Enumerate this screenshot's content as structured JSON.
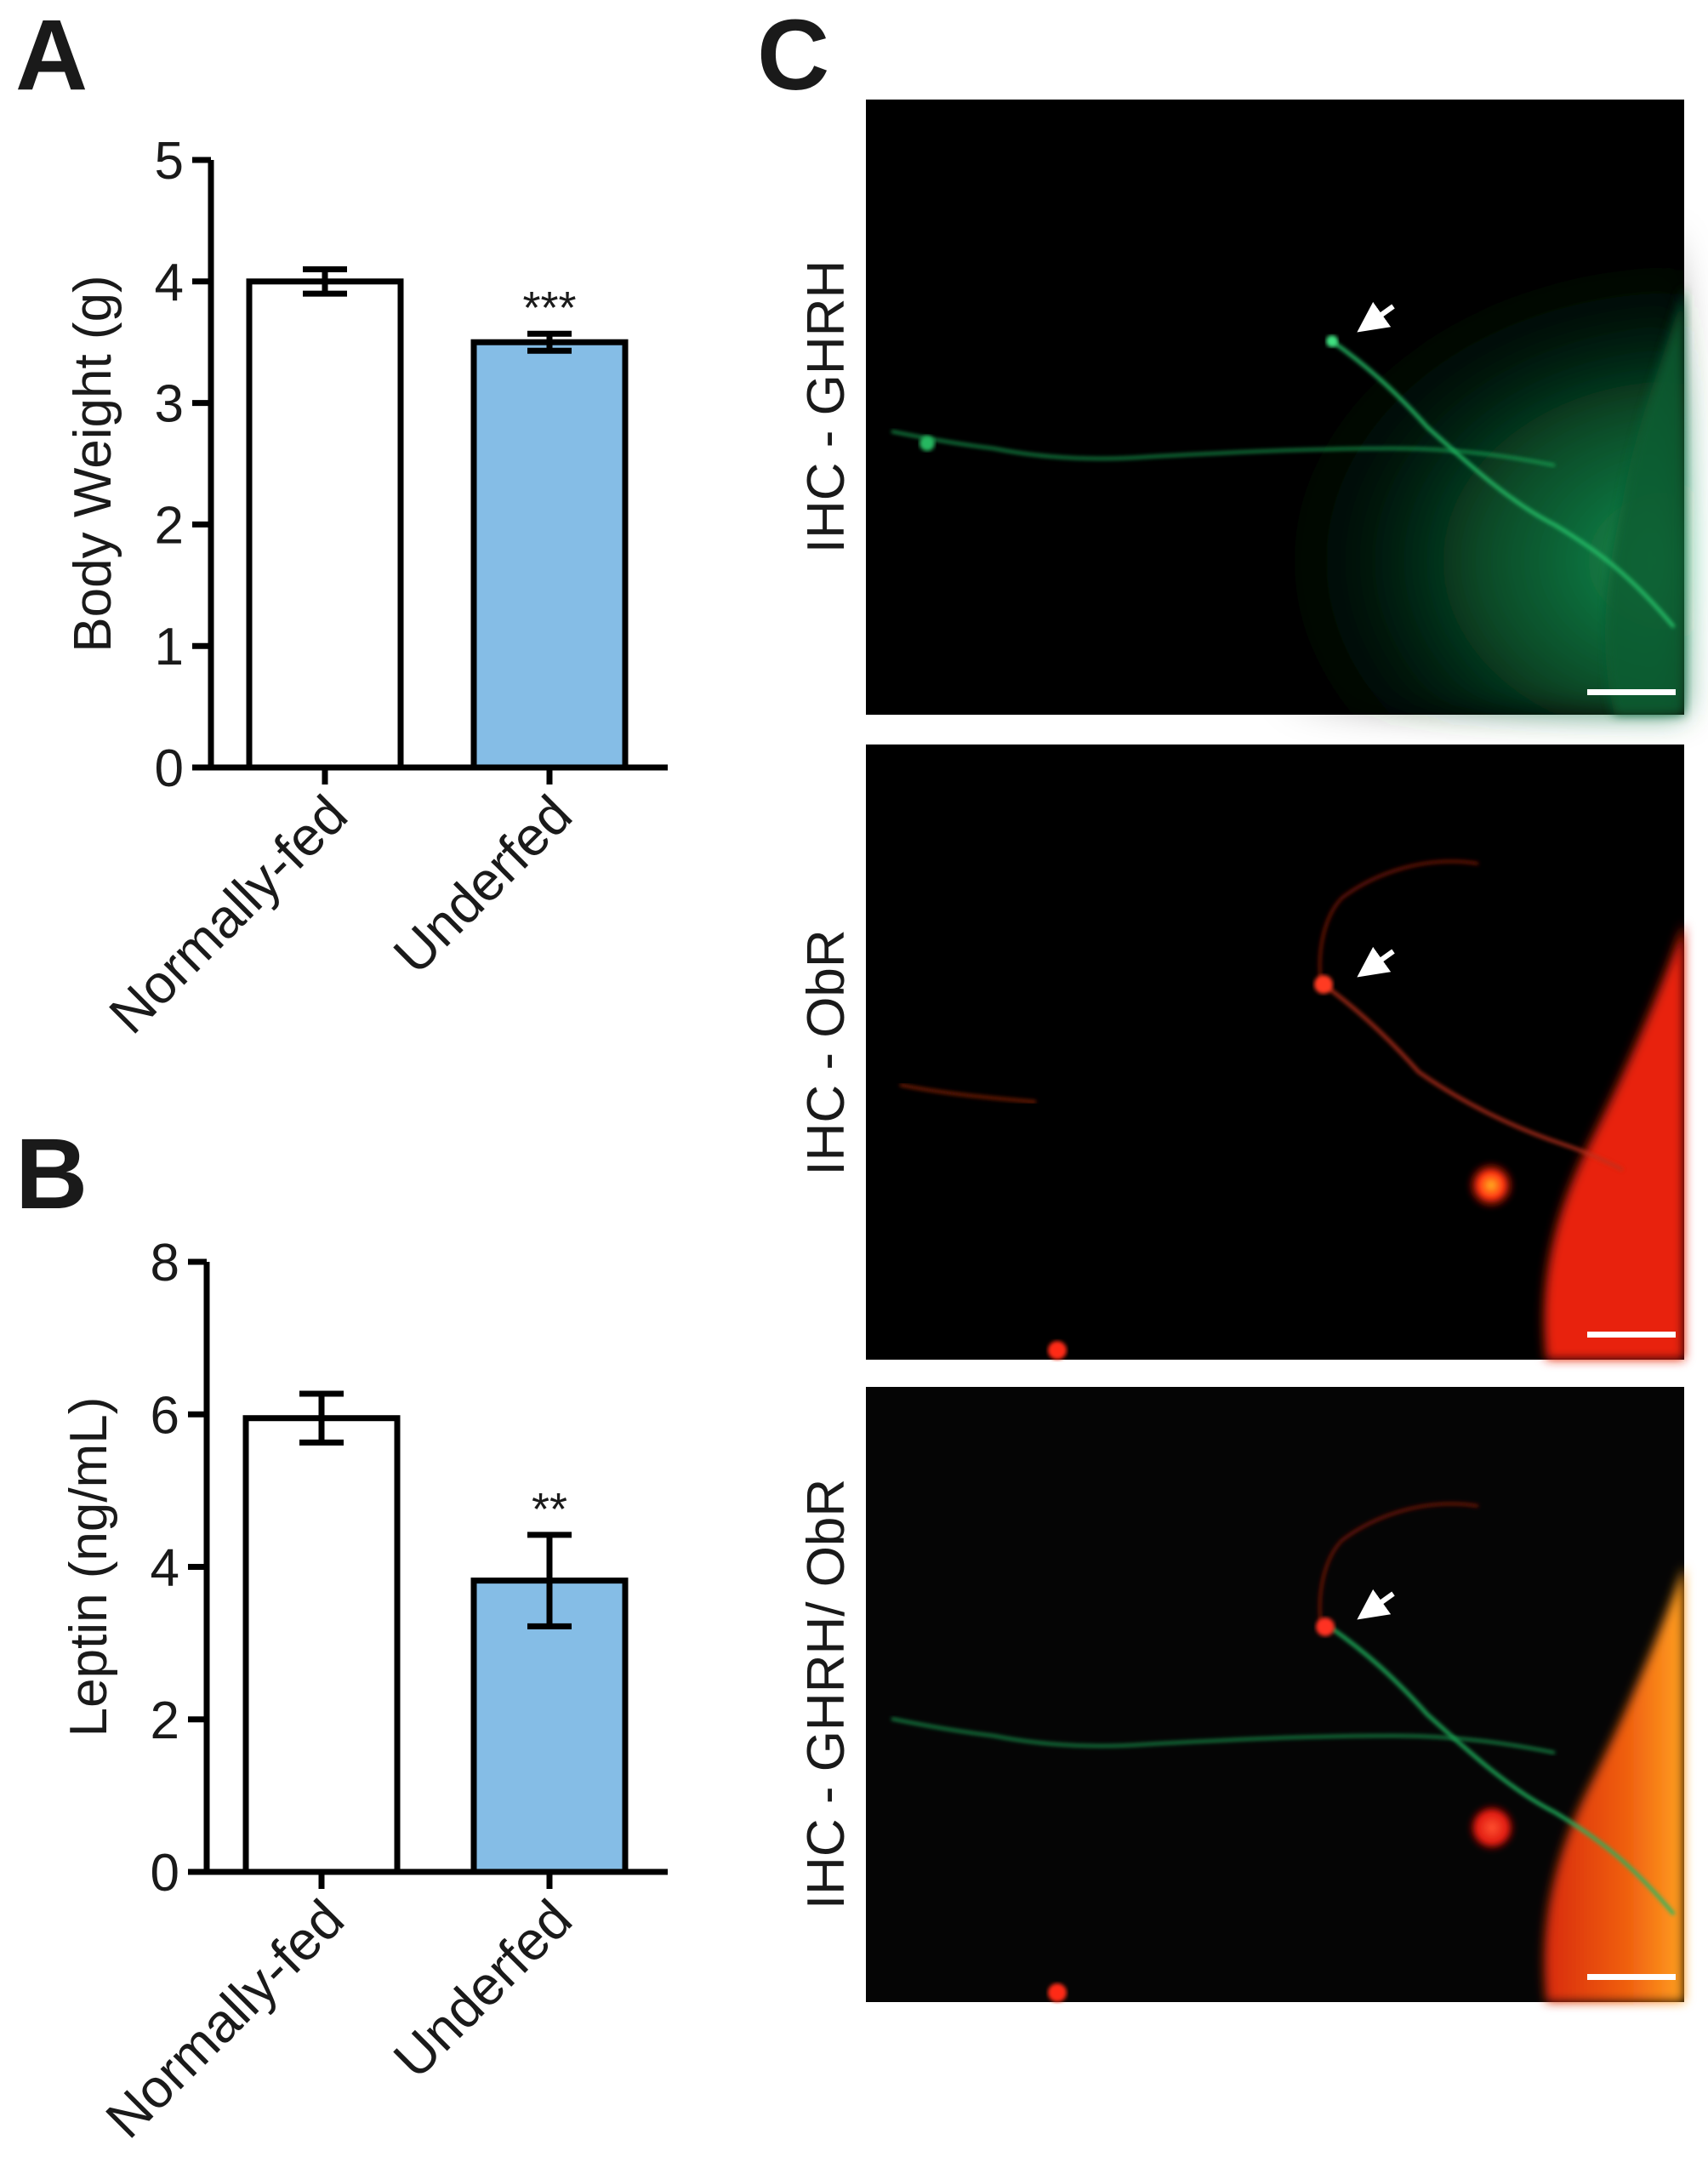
{
  "panels": {
    "A": "A",
    "B": "B",
    "C": "C"
  },
  "chart_data": [
    {
      "panel": "A",
      "type": "bar",
      "categories": [
        "Normally-fed",
        "Underfed"
      ],
      "values": [
        4.0,
        3.5
      ],
      "errors": [
        0.1,
        0.07
      ],
      "significance": [
        "",
        "***"
      ],
      "ylabel": "Body Weight (g)",
      "xlabel": "",
      "ylim": [
        0,
        5
      ],
      "yticks": [
        0,
        1,
        2,
        3,
        4,
        5
      ],
      "colors": [
        "#ffffff",
        "#85bde6"
      ]
    },
    {
      "panel": "B",
      "type": "bar",
      "categories": [
        "Normally-fed",
        "Underfed"
      ],
      "values": [
        5.95,
        3.82
      ],
      "errors": [
        0.32,
        0.6
      ],
      "significance": [
        "",
        "**"
      ],
      "ylabel": "Leptin (ng/mL)",
      "xlabel": "",
      "ylim": [
        0,
        8
      ],
      "yticks": [
        0,
        2,
        4,
        6,
        8
      ],
      "colors": [
        "#ffffff",
        "#85bde6"
      ]
    }
  ],
  "micrographs": [
    {
      "label": "IHC - GHRH",
      "channel": "green"
    },
    {
      "label": "IHC - ObR",
      "channel": "red"
    },
    {
      "label": "IHC - GHRH/ ObR",
      "channel": "merge"
    }
  ]
}
